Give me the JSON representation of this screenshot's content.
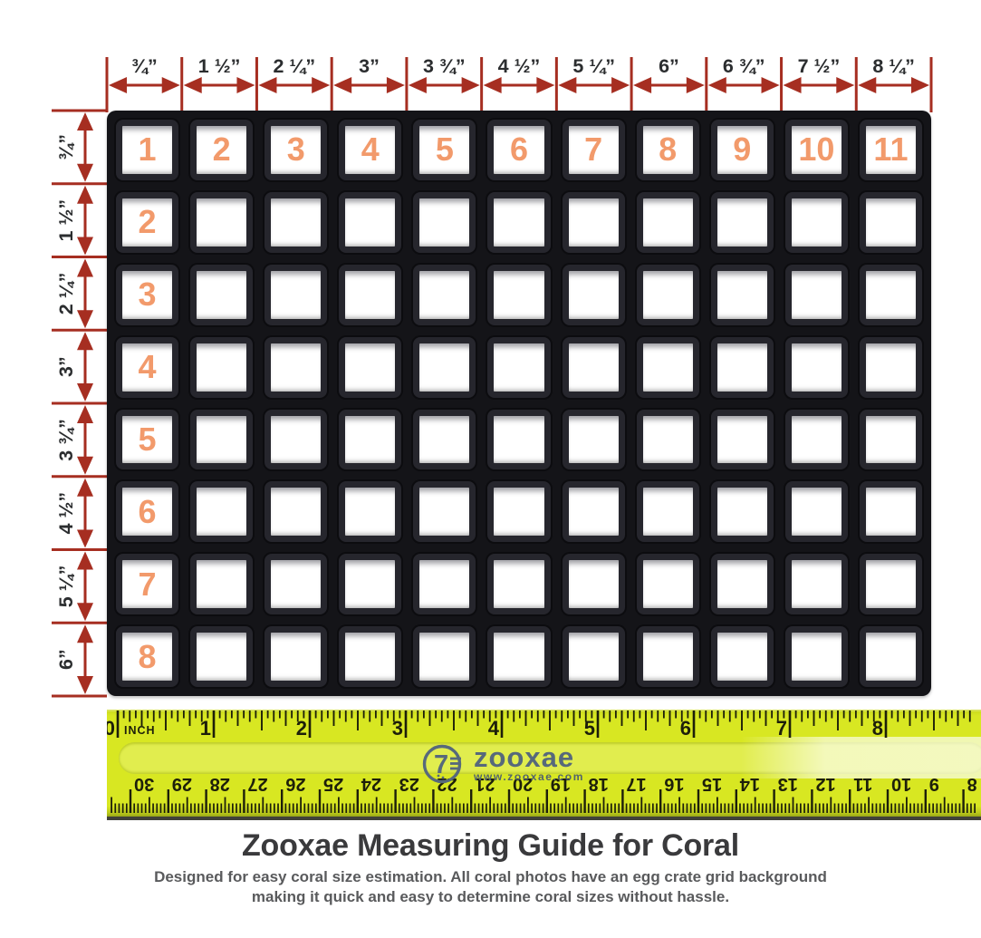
{
  "page": {
    "title": "Zooxae Measuring Guide for Coral",
    "subtitle": "Designed for easy coral size estimation. All coral photos have an egg crate grid background\nmaking it quick and easy to determine coral sizes without hassle."
  },
  "colors": {
    "arrow_red": "#A62E21",
    "label_dark": "#2b2d2f",
    "number_orange": "#F29A6B",
    "grid_black": "#141418",
    "ruler_yellow": "#d8e722",
    "ruler_band": "#e1ed4e",
    "ruler_tick": "#1d1f0a",
    "logo_slate": "#57697b",
    "title_gray": "#3a3a3c",
    "subtitle_gray": "#595a5c"
  },
  "top_scale": {
    "labels": [
      "¾”",
      "1 ½”",
      "2 ¼”",
      "3”",
      "3 ¾”",
      "4 ½”",
      "5 ¼”",
      "6”",
      "6 ¾”",
      "7 ½”",
      "8 ¼”"
    ]
  },
  "left_scale": {
    "labels": [
      "¾”",
      "1 ½”",
      "2 ¼”",
      "3”",
      "3 ¾”",
      "4 ½”",
      "5 ¼”",
      "6”"
    ]
  },
  "grid": {
    "columns": 11,
    "rows": 8,
    "top_row_numbers": [
      "1",
      "2",
      "3",
      "4",
      "5",
      "6",
      "7",
      "8",
      "9",
      "10",
      "11"
    ],
    "left_col_numbers": [
      "2",
      "3",
      "4",
      "5",
      "6",
      "7",
      "8"
    ]
  },
  "ruler": {
    "zero_number": "0",
    "unit_label": "INCH",
    "inch_numbers": [
      "1",
      "2",
      "3",
      "4",
      "5",
      "6",
      "7",
      "8"
    ],
    "cm_numbers": [
      "30",
      "29",
      "28",
      "27",
      "26",
      "25",
      "24",
      "23",
      "22",
      "21",
      "20",
      "19",
      "18",
      "17",
      "16",
      "15",
      "14",
      "13",
      "12",
      "11",
      "10",
      "9",
      "8"
    ],
    "logo_text": "zooxae",
    "logo_url": "www.zooxae.com"
  }
}
